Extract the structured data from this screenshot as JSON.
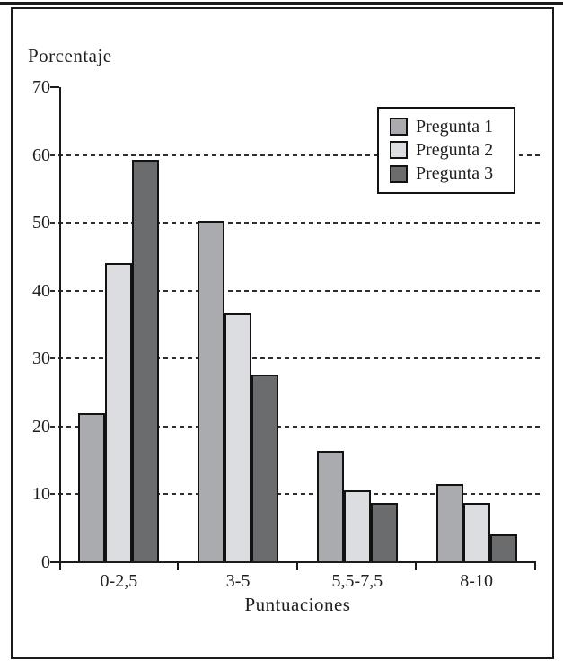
{
  "chart_data": {
    "type": "bar",
    "title": "",
    "ylabel": "Porcentaje",
    "xlabel": "Puntuaciones",
    "categories": [
      "0-2,5",
      "3-5",
      "5,5-7,5",
      "8-10"
    ],
    "series": [
      {
        "name": "Pregunta 1",
        "color": "#a9abae",
        "values": [
          22.0,
          50.3,
          16.4,
          11.5
        ]
      },
      {
        "name": "Pregunta 2",
        "color": "#dcdde0",
        "values": [
          44.1,
          36.6,
          10.6,
          8.8
        ]
      },
      {
        "name": "Pregunta 3",
        "color": "#6a6c6e",
        "values": [
          59.3,
          27.7,
          8.8,
          4.1
        ]
      }
    ],
    "ylim": [
      0,
      70
    ],
    "yticks": [
      0,
      10,
      20,
      30,
      40,
      50,
      60,
      70
    ],
    "grid": "dashed-horizontal",
    "legend_position": "upper-right",
    "axis_color": "#1b1b1b"
  }
}
